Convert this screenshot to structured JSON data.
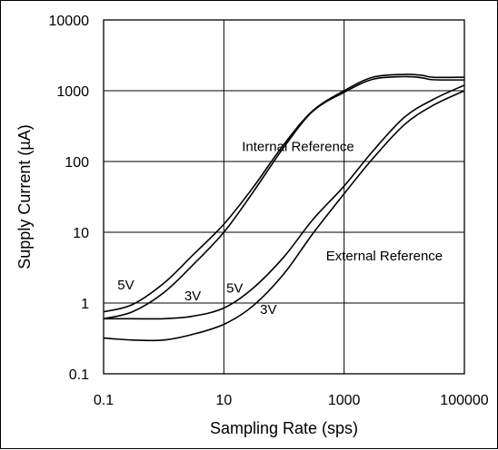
{
  "chart_data": {
    "type": "line",
    "title": "",
    "xlabel": "Sampling Rate (sps)",
    "ylabel": "Supply Current (µA)",
    "x_scale": "log",
    "y_scale": "log",
    "xlim": [
      0.1,
      100000
    ],
    "ylim": [
      0.1,
      10000
    ],
    "grid": true,
    "x_ticks": [
      0.1,
      10,
      1000,
      100000
    ],
    "x_tick_labels": [
      "0.1",
      "10",
      "1000",
      "100000"
    ],
    "y_ticks": [
      0.1,
      1,
      10,
      100,
      1000,
      10000
    ],
    "y_tick_labels": [
      "0.1",
      "1",
      "10",
      "100",
      "1000",
      "10000"
    ],
    "annotations": [
      {
        "text": "Internal Reference",
        "x": 20,
        "y": 140
      },
      {
        "text": "External Reference",
        "x": 500,
        "y": 4.0
      },
      {
        "text": "5V",
        "x": 0.17,
        "y": 1.55
      },
      {
        "text": "3V",
        "x": 2.2,
        "y": 1.1
      },
      {
        "text": "5V",
        "x": 11,
        "y": 1.4
      },
      {
        "text": "3V",
        "x": 40,
        "y": 0.7
      }
    ],
    "series": [
      {
        "x": [
          0.1,
          0.3,
          1,
          3,
          10,
          30,
          100,
          300,
          1000,
          3000,
          10000,
          20000,
          30000,
          100000
        ],
        "y": [
          0.75,
          0.95,
          1.9,
          4.7,
          13,
          42,
          175,
          520,
          1000,
          1550,
          1700,
          1650,
          1550,
          1550
        ]
      },
      {
        "x": [
          0.1,
          0.3,
          1,
          3,
          10,
          30,
          100,
          300,
          1000,
          3000,
          10000,
          20000,
          30000,
          100000
        ],
        "y": [
          0.6,
          0.75,
          1.4,
          3.4,
          10,
          36,
          160,
          510,
          950,
          1450,
          1580,
          1520,
          1430,
          1420
        ]
      },
      {
        "x": [
          0.1,
          0.3,
          1,
          3,
          10,
          30,
          100,
          300,
          1000,
          3000,
          10000,
          30000,
          100000
        ],
        "y": [
          0.6,
          0.6,
          0.6,
          0.65,
          0.85,
          1.6,
          4.5,
          15,
          45,
          140,
          420,
          750,
          1200
        ]
      },
      {
        "x": [
          0.1,
          0.3,
          1,
          3,
          10,
          30,
          100,
          300,
          1000,
          3000,
          10000,
          30000,
          100000
        ],
        "y": [
          0.32,
          0.3,
          0.3,
          0.36,
          0.5,
          0.9,
          2.6,
          9.5,
          35,
          110,
          330,
          620,
          1000
        ]
      }
    ]
  }
}
